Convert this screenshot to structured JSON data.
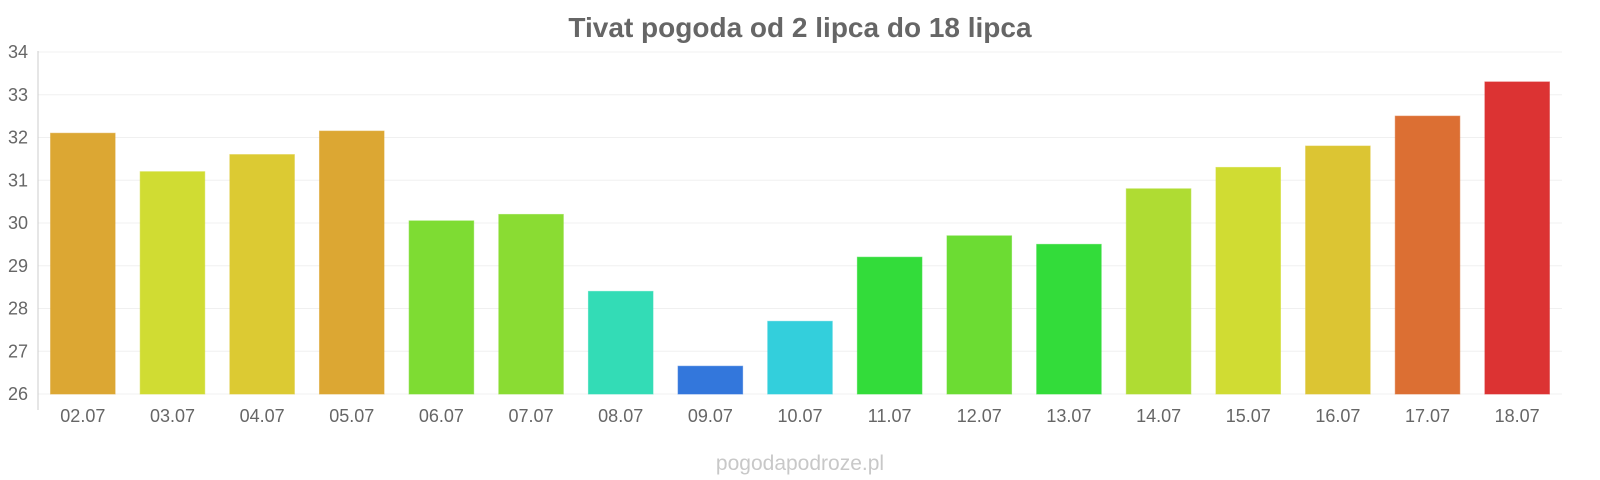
{
  "chart_data": {
    "type": "bar",
    "title": "Tivat pogoda od 2 lipca do 18 lipca",
    "xlabel": "",
    "ylabel": "",
    "categories": [
      "02.07",
      "03.07",
      "04.07",
      "05.07",
      "06.07",
      "07.07",
      "08.07",
      "09.07",
      "10.07",
      "11.07",
      "12.07",
      "13.07",
      "14.07",
      "15.07",
      "16.07",
      "17.07",
      "18.07"
    ],
    "values": [
      32.1,
      31.2,
      31.6,
      32.15,
      30.05,
      30.2,
      28.4,
      26.65,
      27.7,
      29.2,
      29.7,
      29.5,
      30.8,
      31.3,
      31.8,
      32.5,
      33.3
    ],
    "colors": [
      "#dca733",
      "#d0dc33",
      "#dcca33",
      "#dca733",
      "#7edc33",
      "#8adc33",
      "#33dcb6",
      "#3377dc",
      "#33cfdc",
      "#33dc3a",
      "#6cdc33",
      "#33dc3a",
      "#afdc33",
      "#d0dc33",
      "#dcc533",
      "#dc6f33",
      "#dc3333"
    ],
    "ylim": [
      26,
      34
    ],
    "yticks": [
      26,
      27,
      28,
      29,
      30,
      31,
      32,
      33,
      34
    ],
    "grid": true,
    "legend": "none"
  },
  "footer": {
    "watermark": "pogodapodroze.pl"
  }
}
